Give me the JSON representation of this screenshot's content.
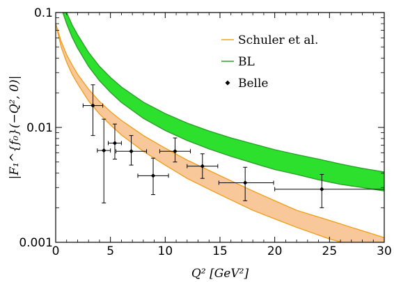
{
  "chart_data": {
    "type": "line",
    "xlabel": "Q² [GeV²]",
    "ylabel": "|F₁^{f₀}(−Q², 0)|",
    "xlim": [
      0,
      30
    ],
    "ylim": [
      0.001,
      0.1
    ],
    "yscale": "log",
    "xticks": [
      "0",
      "5",
      "10",
      "15",
      "20",
      "25",
      "30"
    ],
    "yticks": [
      "0.001",
      "0.01",
      "0.1"
    ],
    "grid": false,
    "legend_position": "top-right",
    "series": [
      {
        "name": "Schuler et al.",
        "kind": "band",
        "color": "#f2a01e",
        "fill": "#f8c89a",
        "x": [
          0,
          0.5,
          1,
          1.5,
          2,
          3,
          4,
          5,
          6,
          8,
          10,
          12,
          15,
          18,
          20,
          22,
          25,
          27,
          30
        ],
        "upper": [
          0.08,
          0.056,
          0.043,
          0.035,
          0.029,
          0.0215,
          0.0168,
          0.0137,
          0.0115,
          0.0085,
          0.0066,
          0.0052,
          0.0038,
          0.0028,
          0.0023,
          0.0019,
          0.00155,
          0.00135,
          0.0011
        ],
        "lower": [
          0.08,
          0.05,
          0.037,
          0.029,
          0.024,
          0.017,
          0.0131,
          0.0105,
          0.0086,
          0.0062,
          0.0047,
          0.0036,
          0.0026,
          0.0019,
          0.0016,
          0.00135,
          0.00107,
          0.00095,
          0.00078
        ]
      },
      {
        "name": "BL",
        "kind": "band",
        "color": "#2aa02a",
        "fill": "#2ee02e",
        "x": [
          0.5,
          1,
          1.5,
          2,
          3,
          4,
          5,
          6,
          8,
          10,
          12,
          14,
          16,
          18,
          20,
          22,
          24,
          26,
          28,
          30
        ],
        "upper": [
          0.14,
          0.1,
          0.078,
          0.064,
          0.045,
          0.034,
          0.0272,
          0.0225,
          0.0166,
          0.0132,
          0.0109,
          0.0093,
          0.0081,
          0.0072,
          0.0064,
          0.0058,
          0.0053,
          0.0048,
          0.0044,
          0.0041
        ],
        "lower": [
          0.11,
          0.08,
          0.061,
          0.049,
          0.034,
          0.0255,
          0.0202,
          0.0165,
          0.012,
          0.0094,
          0.0077,
          0.0065,
          0.0056,
          0.0049,
          0.0043,
          0.0039,
          0.0035,
          0.0032,
          0.003,
          0.0028
        ]
      },
      {
        "name": "Belle",
        "kind": "points",
        "color": "#000000",
        "points": [
          {
            "x": 3.4,
            "y": 0.0155,
            "xerr": [
              0.9,
              0.9
            ],
            "ylo": 0.0085,
            "yhi": 0.0235
          },
          {
            "x": 4.4,
            "y": 0.0063,
            "xerr": [
              0.6,
              0.6
            ],
            "ylo": 0.0022,
            "yhi": 0.0118
          },
          {
            "x": 5.4,
            "y": 0.0073,
            "xerr": [
              0.6,
              0.6
            ],
            "ylo": 0.0053,
            "yhi": 0.0107
          },
          {
            "x": 6.9,
            "y": 0.0062,
            "xerr": [
              1.4,
              1.4
            ],
            "ylo": 0.0047,
            "yhi": 0.0085
          },
          {
            "x": 8.9,
            "y": 0.0038,
            "xerr": [
              1.4,
              1.4
            ],
            "ylo": 0.0026,
            "yhi": 0.0054
          },
          {
            "x": 10.9,
            "y": 0.0062,
            "xerr": [
              1.4,
              1.4
            ],
            "ylo": 0.005,
            "yhi": 0.0081
          },
          {
            "x": 13.4,
            "y": 0.0046,
            "xerr": [
              1.4,
              1.4
            ],
            "ylo": 0.0036,
            "yhi": 0.0059
          },
          {
            "x": 17.3,
            "y": 0.0033,
            "xerr": [
              2.4,
              2.6
            ],
            "ylo": 0.0023,
            "yhi": 0.0045
          },
          {
            "x": 24.3,
            "y": 0.0029,
            "xerr": [
              4.3,
              5.7
            ],
            "ylo": 0.002,
            "yhi": 0.0039
          }
        ]
      }
    ]
  }
}
